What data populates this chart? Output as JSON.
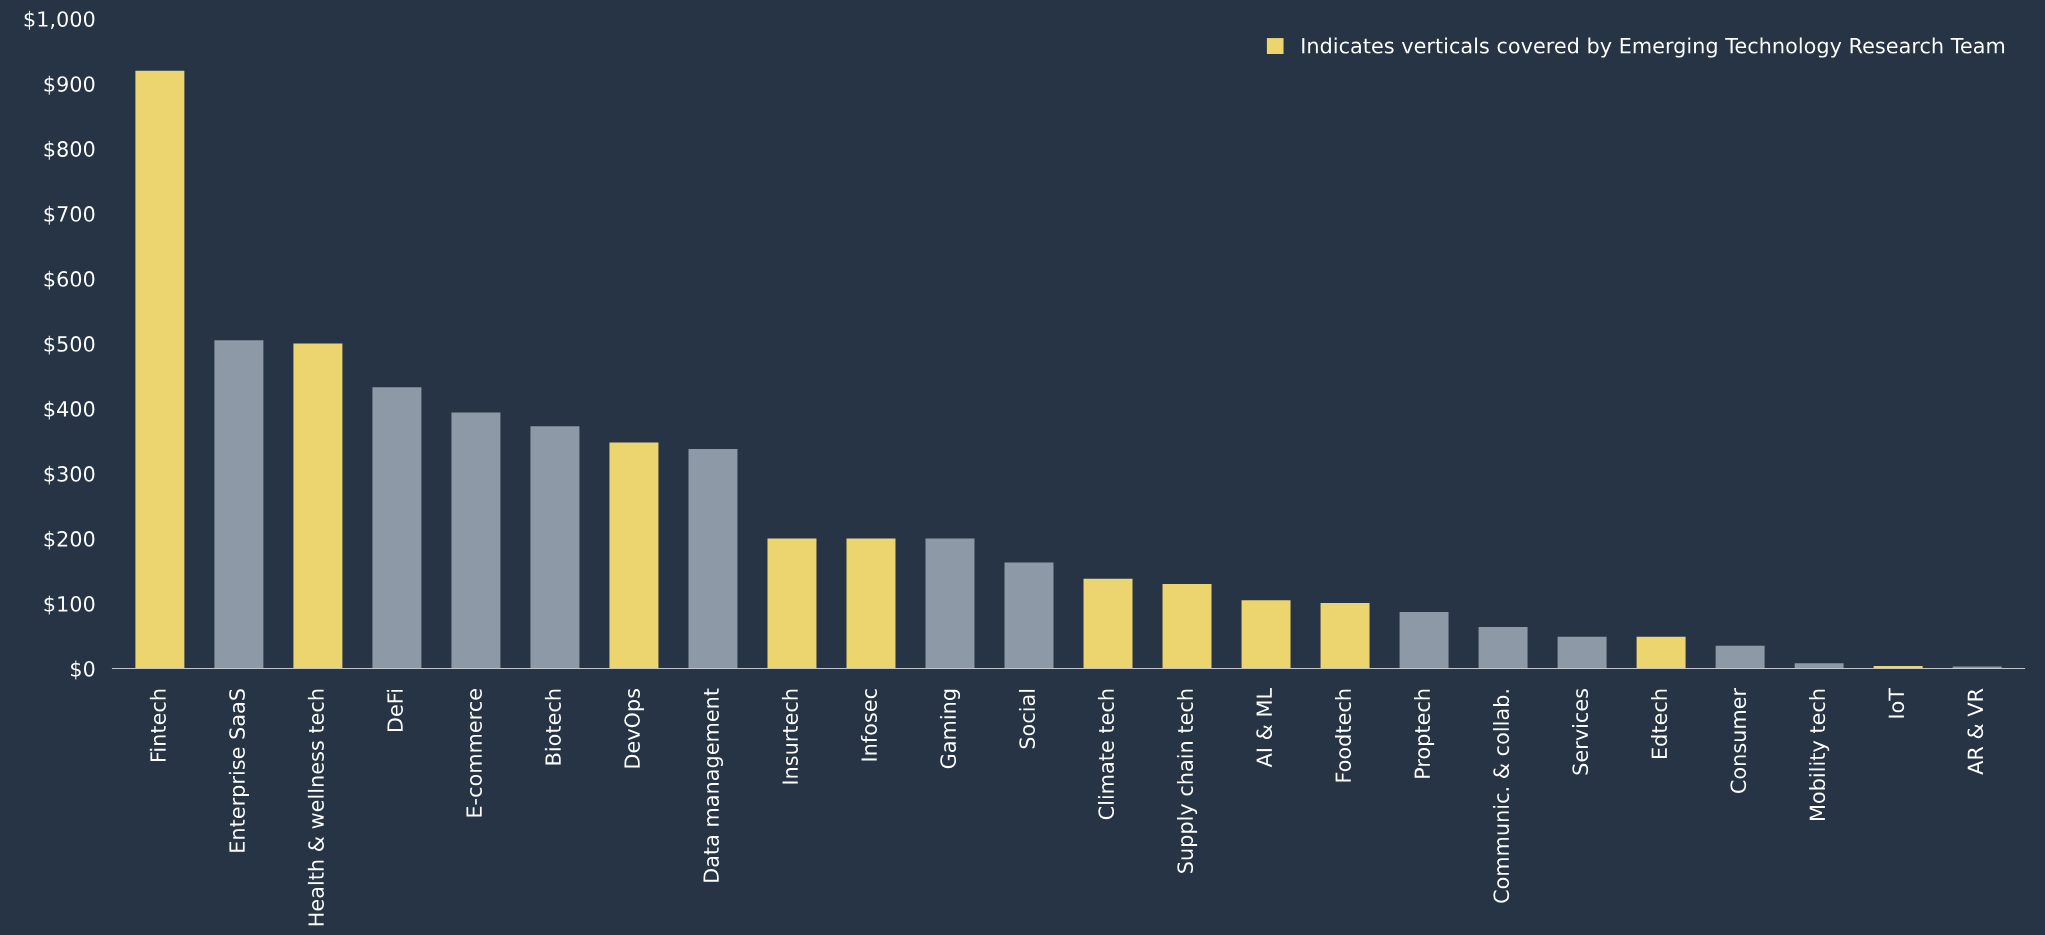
{
  "chart_data": {
    "type": "bar",
    "categories": [
      "Fintech",
      "Enterprise SaaS",
      "Health & wellness tech",
      "DeFi",
      "E-commerce",
      "Biotech",
      "DevOps",
      "Data management",
      "Insurtech",
      "Infosec",
      "Gaming",
      "Social",
      "Climate tech",
      "Supply chain tech",
      "AI & ML",
      "Foodtech",
      "Proptech",
      "Communic. & collab.",
      "Services",
      "Edtech",
      "Consumer",
      "Mobility tech",
      "IoT",
      "AR & VR"
    ],
    "series": [
      {
        "name": "Indicates verticals covered by Emerging Technology Research Team",
        "color": "#ecd56f",
        "values": [
          920,
          null,
          500,
          null,
          null,
          null,
          348,
          null,
          200,
          200,
          null,
          null,
          138,
          130,
          105,
          101,
          null,
          null,
          null,
          49,
          null,
          null,
          4,
          null
        ]
      },
      {
        "color": "#8d99a6",
        "values": [
          null,
          505,
          null,
          433,
          394,
          373,
          null,
          338,
          null,
          null,
          200,
          163,
          null,
          null,
          null,
          null,
          87,
          64,
          49,
          null,
          35,
          8,
          null,
          3
        ]
      }
    ],
    "ylim": [
      0,
      1000
    ],
    "yticks": [
      {
        "value": 0,
        "label": "$0"
      },
      {
        "value": 100,
        "label": "$100"
      },
      {
        "value": 200,
        "label": "$200"
      },
      {
        "value": 300,
        "label": "$300"
      },
      {
        "value": 400,
        "label": "$400"
      },
      {
        "value": 500,
        "label": "$500"
      },
      {
        "value": 600,
        "label": "$600"
      },
      {
        "value": 700,
        "label": "$700"
      },
      {
        "value": 800,
        "label": "$800"
      },
      {
        "value": 900,
        "label": "$900"
      },
      {
        "value": 1000,
        "label": "$1,000"
      }
    ],
    "grid": false,
    "legend": "top right"
  }
}
